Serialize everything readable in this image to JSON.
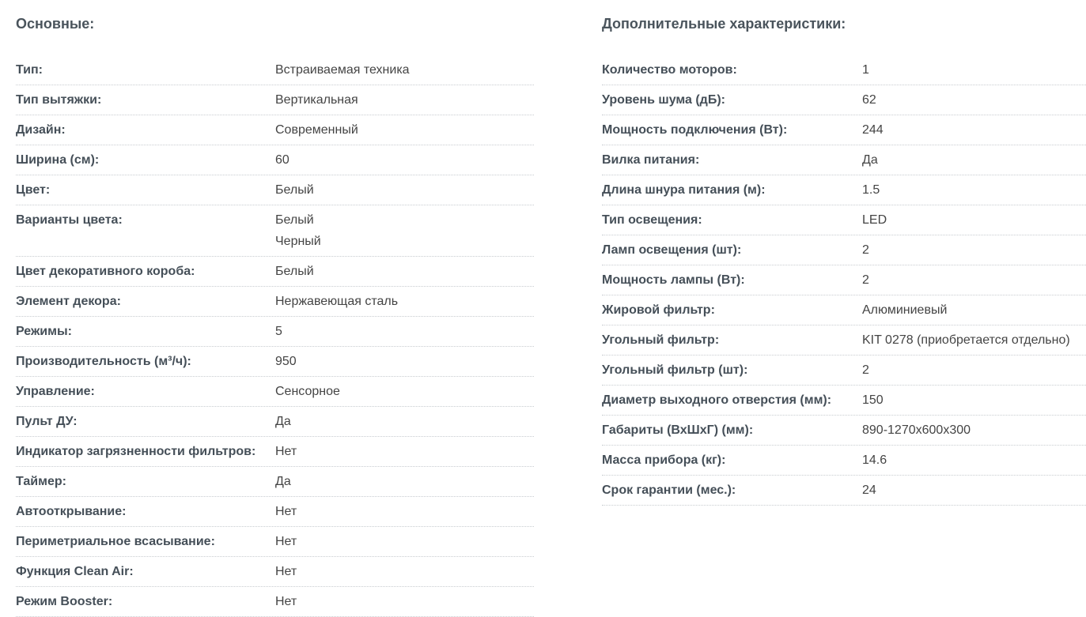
{
  "main_section": {
    "title": "Основные:",
    "rows": [
      {
        "label": "Тип:",
        "values": [
          "Встраиваемая техника"
        ]
      },
      {
        "label": "Тип вытяжки:",
        "values": [
          "Вертикальная"
        ]
      },
      {
        "label": "Дизайн:",
        "values": [
          "Современный"
        ]
      },
      {
        "label": "Ширина (см):",
        "values": [
          "60"
        ]
      },
      {
        "label": "Цвет:",
        "values": [
          "Белый"
        ]
      },
      {
        "label": "Варианты цвета:",
        "values": [
          "Белый",
          "Черный"
        ]
      },
      {
        "label": "Цвет декоративного короба:",
        "values": [
          "Белый"
        ]
      },
      {
        "label": "Элемент декора:",
        "values": [
          "Нержавеющая сталь"
        ]
      },
      {
        "label": "Режимы:",
        "values": [
          "5"
        ]
      },
      {
        "label": "Производительность (м³/ч):",
        "values": [
          "950"
        ]
      },
      {
        "label": "Управление:",
        "values": [
          "Сенсорное"
        ]
      },
      {
        "label": "Пульт ДУ:",
        "values": [
          "Да"
        ]
      },
      {
        "label": "Индикатор загрязненности фильтров:",
        "values": [
          "Нет"
        ]
      },
      {
        "label": "Таймер:",
        "values": [
          "Да"
        ]
      },
      {
        "label": "Автооткрывание:",
        "values": [
          "Нет"
        ]
      },
      {
        "label": "Периметриальное всасывание:",
        "values": [
          "Нет"
        ]
      },
      {
        "label": "Функция Clean Air:",
        "values": [
          "Нет"
        ]
      },
      {
        "label": "Режим Booster:",
        "values": [
          "Нет"
        ]
      }
    ]
  },
  "extra_section": {
    "title": "Дополнительные характеристики:",
    "rows": [
      {
        "label": "Количество моторов:",
        "values": [
          "1"
        ]
      },
      {
        "label": "Уровень шума (дБ):",
        "values": [
          "62"
        ]
      },
      {
        "label": "Мощность подключения (Вт):",
        "values": [
          "244"
        ]
      },
      {
        "label": "Вилка питания:",
        "values": [
          "Да"
        ]
      },
      {
        "label": "Длина шнура питания (м):",
        "values": [
          "1.5"
        ]
      },
      {
        "label": "Тип освещения:",
        "values": [
          "LED"
        ]
      },
      {
        "label": "Ламп освещения (шт):",
        "values": [
          "2"
        ]
      },
      {
        "label": "Мощность лампы (Вт):",
        "values": [
          "2"
        ]
      },
      {
        "label": "Жировой фильтр:",
        "values": [
          "Алюминиевый"
        ]
      },
      {
        "label": "Угольный фильтр:",
        "values": [
          "KIT 0278 (приобретается отдельно)"
        ]
      },
      {
        "label": "Угольный фильтр (шт):",
        "values": [
          "2"
        ]
      },
      {
        "label": "Диаметр выходного отверстия (мм):",
        "values": [
          "150"
        ]
      },
      {
        "label": "Габариты (ВхШхГ) (мм):",
        "values": [
          "890-1270x600x300"
        ]
      },
      {
        "label": "Масса прибора (кг):",
        "values": [
          "14.6"
        ]
      },
      {
        "label": "Срок гарантии (мес.):",
        "values": [
          "24"
        ]
      }
    ]
  }
}
